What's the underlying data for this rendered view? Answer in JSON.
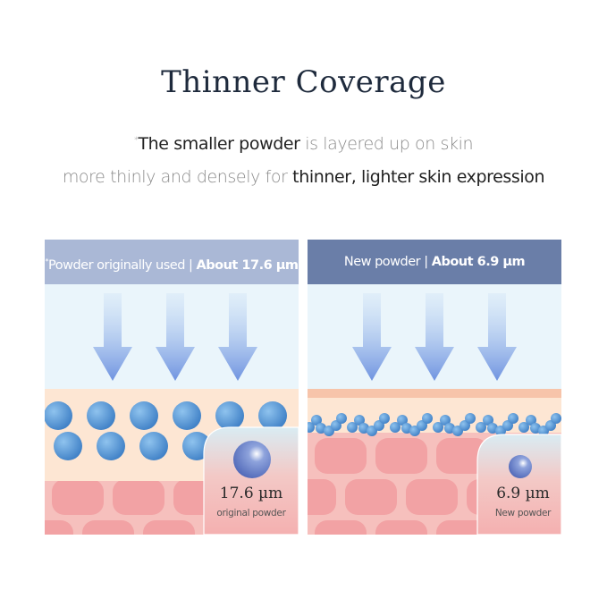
{
  "title": "Thinner Coverage",
  "subtitle": {
    "line1_mark": "*",
    "line1_bold": "The smaller powder",
    "line1_rest": " is layered up on skin",
    "line2_rest": "more thinly and densely for ",
    "line2_bold": "thinner, lighter skin expression"
  },
  "panels": [
    {
      "header_mark": "*",
      "header_label": "Powder originally used",
      "header_sep": " | ",
      "header_value": "About 17.6 µm",
      "inset_value": "17.6 µm",
      "inset_caption": "original powder",
      "header_color": "#aab8d6"
    },
    {
      "header_mark": "",
      "header_label": "New powder",
      "header_sep": " | ",
      "header_value": "About 6.9 µm",
      "inset_value": "6.9 µm",
      "inset_caption": "New powder",
      "header_color": "#6a7ea8"
    }
  ],
  "colors": {
    "sky": "#eaf5fb",
    "peach": "#fde6d3",
    "skin": "#f6c0bd",
    "cell": "#f2a2a4",
    "powder": "#4f8fd0"
  }
}
